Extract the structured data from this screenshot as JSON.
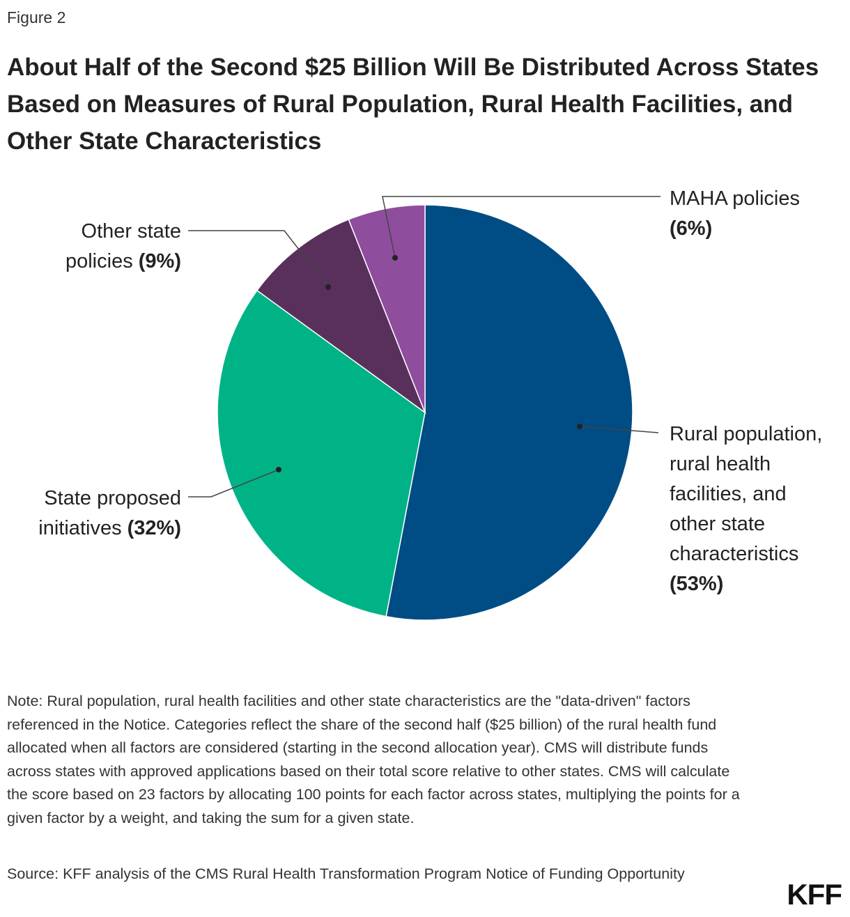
{
  "figure_label": "Figure 2",
  "chart_data": {
    "type": "pie",
    "title": "About Half of the Second $25 Billion Will Be Distributed Across States Based on Measures of Rural Population, Rural Health Facilities, and Other State Characteristics",
    "slices": [
      {
        "name": "Rural population, rural health facilities, and other state characteristics",
        "value": 53,
        "label_text": "Rural population, rural health facilities, and other state characteristics",
        "pct_text": "(53%)",
        "color": "#004c85"
      },
      {
        "name": "State proposed initiatives",
        "value": 32,
        "label_text": "State proposed initiatives",
        "pct_text": "(32%)",
        "color": "#00b386"
      },
      {
        "name": "Other state policies",
        "value": 9,
        "label_text": "Other state policies",
        "pct_text": "(9%)",
        "color": "#59305c"
      },
      {
        "name": "MAHA policies",
        "value": 6,
        "label_text": "MAHA policies",
        "pct_text": "(6%)",
        "color": "#8f4d9e"
      }
    ],
    "start": "top, clockwise"
  },
  "note": "Note: Rural population, rural health facilities and other state characteristics are the \"data-driven\" factors referenced in the Notice. Categories reflect the share of the second half ($25 billion) of the rural health fund allocated when all factors are considered (starting in the second allocation year). CMS will distribute funds across states with approved applications based on their total score relative to other states. CMS will calculate the score based on 23 factors by allocating 100 points for each factor across states, multiplying the points for a given factor by a weight, and taking the sum for a given state.",
  "source": "Source: KFF analysis of the CMS Rural Health Transformation Program Notice of Funding Opportunity",
  "logo_text": "KFF"
}
